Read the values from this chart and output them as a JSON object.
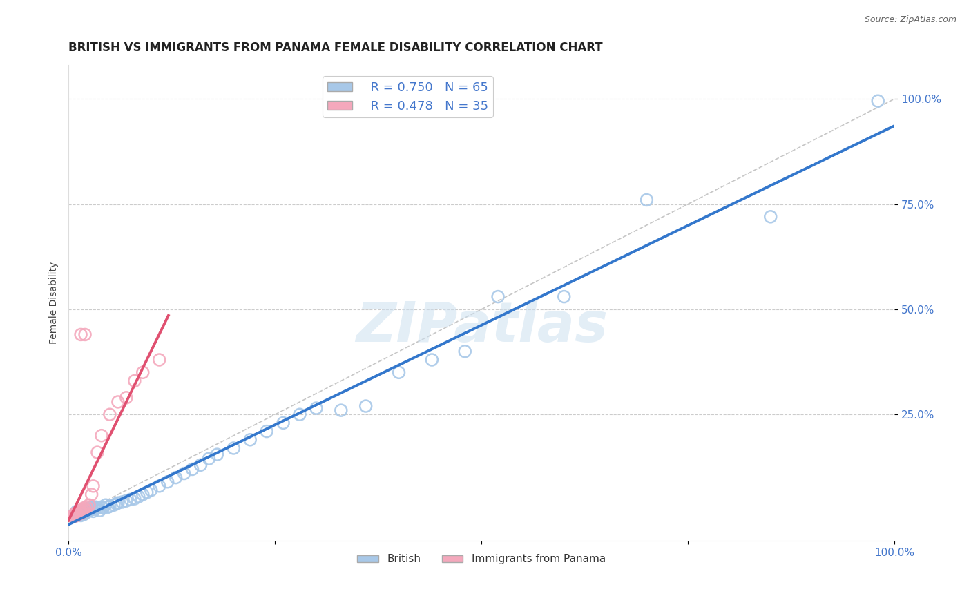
{
  "title": "BRITISH VS IMMIGRANTS FROM PANAMA FEMALE DISABILITY CORRELATION CHART",
  "source": "Source: ZipAtlas.com",
  "ylabel": "Female Disability",
  "watermark": "ZIPatlas",
  "xlim": [
    0.0,
    1.0
  ],
  "ylim": [
    -0.05,
    1.08
  ],
  "xticks": [
    0.0,
    0.25,
    0.5,
    0.75,
    1.0
  ],
  "xticklabels": [
    "0.0%",
    "",
    "",
    "",
    "100.0%"
  ],
  "yticks": [
    0.25,
    0.5,
    0.75,
    1.0
  ],
  "yticklabels": [
    "25.0%",
    "50.0%",
    "75.0%",
    "100.0%"
  ],
  "british_R": 0.75,
  "british_N": 65,
  "panama_R": 0.478,
  "panama_N": 35,
  "british_color": "#a8c8e8",
  "panama_color": "#f4a8bc",
  "british_line_color": "#3377cc",
  "panama_line_color": "#e05070",
  "ref_line_color": "#c0c0c0",
  "tick_color": "#4477cc",
  "british_x": [
    0.005,
    0.008,
    0.01,
    0.01,
    0.012,
    0.013,
    0.015,
    0.015,
    0.016,
    0.017,
    0.018,
    0.02,
    0.02,
    0.022,
    0.023,
    0.024,
    0.025,
    0.026,
    0.028,
    0.03,
    0.03,
    0.032,
    0.033,
    0.035,
    0.038,
    0.04,
    0.042,
    0.045,
    0.048,
    0.05,
    0.055,
    0.058,
    0.06,
    0.065,
    0.07,
    0.075,
    0.08,
    0.085,
    0.09,
    0.095,
    0.1,
    0.11,
    0.12,
    0.13,
    0.14,
    0.15,
    0.16,
    0.17,
    0.18,
    0.2,
    0.22,
    0.24,
    0.26,
    0.28,
    0.3,
    0.33,
    0.36,
    0.4,
    0.44,
    0.48,
    0.52,
    0.6,
    0.7,
    0.85,
    0.98
  ],
  "british_y": [
    0.01,
    0.015,
    0.01,
    0.02,
    0.015,
    0.018,
    0.01,
    0.02,
    0.015,
    0.018,
    0.012,
    0.015,
    0.022,
    0.018,
    0.02,
    0.025,
    0.022,
    0.028,
    0.025,
    0.02,
    0.03,
    0.025,
    0.03,
    0.028,
    0.022,
    0.03,
    0.028,
    0.035,
    0.03,
    0.032,
    0.035,
    0.038,
    0.04,
    0.042,
    0.045,
    0.048,
    0.05,
    0.055,
    0.06,
    0.065,
    0.07,
    0.08,
    0.09,
    0.1,
    0.11,
    0.12,
    0.13,
    0.145,
    0.155,
    0.17,
    0.19,
    0.21,
    0.23,
    0.25,
    0.265,
    0.26,
    0.27,
    0.35,
    0.38,
    0.4,
    0.53,
    0.53,
    0.76,
    0.72,
    0.995
  ],
  "panama_x": [
    0.005,
    0.006,
    0.007,
    0.007,
    0.008,
    0.008,
    0.009,
    0.009,
    0.01,
    0.01,
    0.011,
    0.012,
    0.013,
    0.014,
    0.015,
    0.015,
    0.016,
    0.017,
    0.018,
    0.019,
    0.02,
    0.022,
    0.025,
    0.028,
    0.03,
    0.035,
    0.04,
    0.05,
    0.06,
    0.07,
    0.08,
    0.09,
    0.11,
    0.015,
    0.02
  ],
  "panama_y": [
    0.008,
    0.01,
    0.008,
    0.012,
    0.01,
    0.015,
    0.01,
    0.012,
    0.01,
    0.015,
    0.012,
    0.015,
    0.018,
    0.02,
    0.015,
    0.022,
    0.02,
    0.025,
    0.022,
    0.028,
    0.025,
    0.03,
    0.035,
    0.06,
    0.08,
    0.16,
    0.2,
    0.25,
    0.28,
    0.29,
    0.33,
    0.35,
    0.38,
    0.44,
    0.44
  ]
}
